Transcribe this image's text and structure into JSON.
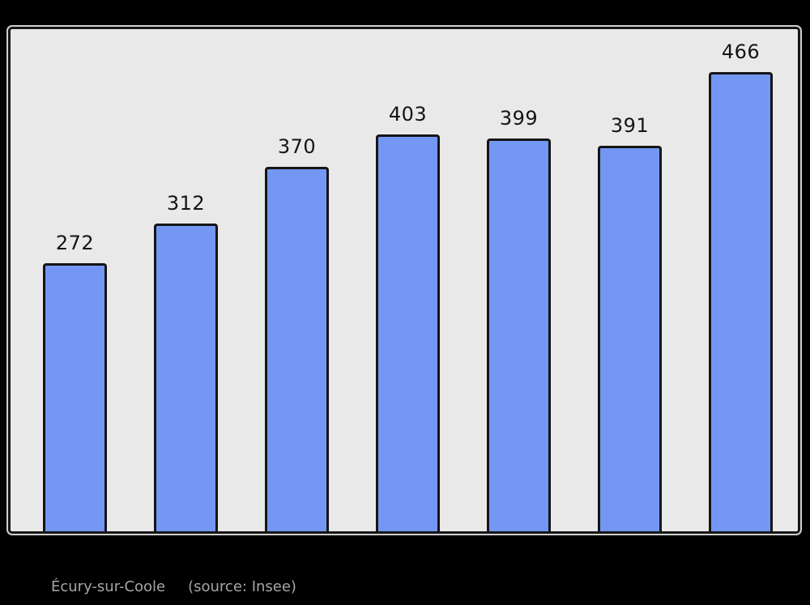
{
  "chart_data": {
    "type": "bar",
    "categories": [
      "",
      "",
      "",
      "",
      "",
      "",
      ""
    ],
    "values": [
      272,
      312,
      370,
      403,
      399,
      391,
      466
    ],
    "bar_labels": [
      "272",
      "312",
      "370",
      "403",
      "399",
      "391",
      "466"
    ],
    "title": "",
    "xlabel": "",
    "ylabel": "",
    "ylim": [
      0,
      512
    ],
    "grid": false,
    "legend": "none"
  },
  "caption": {
    "commune": "Écury-sur-Coole",
    "source": "(source: Insee)"
  },
  "colors": {
    "page_bg": "#000000",
    "plot_bg": "#e9e9e9",
    "frame_border": "#161616",
    "bar_fill": "#7397f3",
    "bar_border": "#151515",
    "label_text": "#141414",
    "caption_text": "#a6a6a6"
  }
}
